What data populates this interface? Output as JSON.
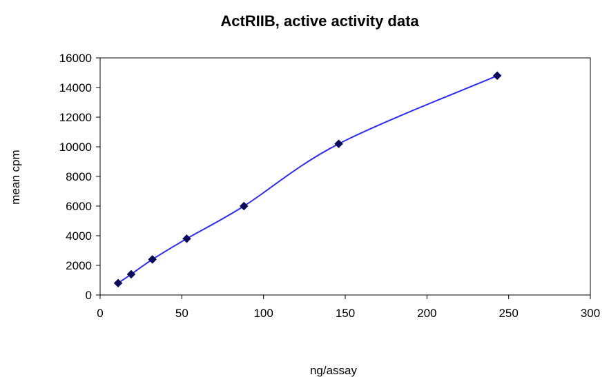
{
  "chart_data": {
    "type": "line",
    "title": "ActRIIB, active activity data",
    "xlabel": "ng/assay",
    "ylabel": "mean cpm",
    "xlim": [
      0,
      300
    ],
    "ylim": [
      0,
      16000
    ],
    "x_ticks": [
      0,
      50,
      100,
      150,
      200,
      250,
      300
    ],
    "y_ticks": [
      0,
      2000,
      4000,
      6000,
      8000,
      10000,
      12000,
      14000,
      16000
    ],
    "grid": false,
    "legend": "none",
    "series": [
      {
        "color": "#2b2bff",
        "marker": "diamond",
        "marker_color": "#0a0a5a",
        "smooth": true,
        "x": [
          11,
          19,
          32,
          53,
          88,
          146,
          243
        ],
        "y": [
          800,
          1400,
          2400,
          3800,
          6000,
          10200,
          14800
        ]
      }
    ]
  }
}
